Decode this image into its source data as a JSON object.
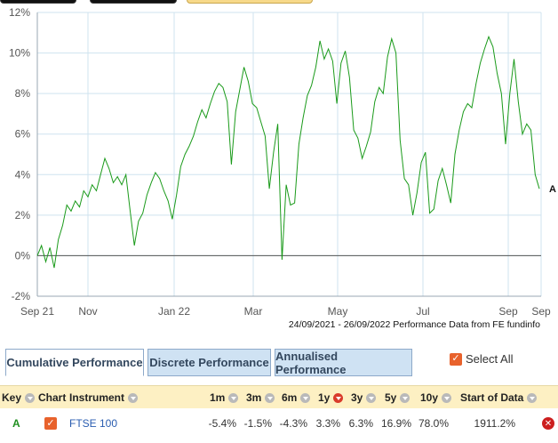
{
  "tabs": [
    {
      "label": "Cumulative Performance",
      "active": true
    },
    {
      "label": "Discrete Performance",
      "active": false
    },
    {
      "label": "Annualised Performance",
      "active": false
    }
  ],
  "select_all": {
    "label": "Select All",
    "checked": true
  },
  "table": {
    "headers": {
      "key": "Key",
      "chart": "Chart",
      "instrument": "Instrument",
      "m1": "1m",
      "m3": "3m",
      "m6": "6m",
      "y1": "1y",
      "y3": "3y",
      "y5": "5y",
      "y10": "10y",
      "start": "Start of Data"
    },
    "rows": [
      {
        "key": "A",
        "instrument": "FTSE 100",
        "m1": "-5.4%",
        "m3": "-1.5%",
        "m6": "-4.3%",
        "y1": "3.3%",
        "y3": "6.3%",
        "y5": "16.9%",
        "y10": "78.0%",
        "start": "1911.2%"
      }
    ]
  },
  "colors": {
    "series": "#1a9a1a",
    "grid": "#cfe3ef",
    "tab_inactive": "#cfe2f3",
    "header_bg": "#fdf0c3",
    "checkbox": "#e8622c",
    "remove": "#cc1f1f"
  },
  "icons": {
    "sort": "sort-arrow-icon",
    "sort_active": "sort-active-icon",
    "check": "check-icon",
    "remove": "remove-icon"
  },
  "chart_data": {
    "type": "line",
    "date_note": "24/09/2021 - 26/09/2022 Performance Data from FE fundinfo",
    "x_ticks": [
      "Sep 21",
      "Nov",
      "Jan 22",
      "Mar",
      "May",
      "Jul",
      "Sep",
      "Sep"
    ],
    "y_ticks": [
      "12%",
      "10%",
      "8%",
      "6%",
      "4%",
      "2%",
      "0%",
      "-2%"
    ],
    "ylim": [
      -2,
      12
    ],
    "grid": true,
    "series": [
      {
        "name": "A",
        "values": [
          0.0,
          0.5,
          -0.3,
          0.4,
          -0.6,
          0.8,
          1.5,
          2.5,
          2.2,
          2.7,
          2.4,
          3.2,
          2.9,
          3.5,
          3.2,
          4.0,
          4.8,
          4.3,
          3.6,
          3.9,
          3.5,
          4.0,
          2.2,
          0.5,
          1.7,
          2.1,
          3.0,
          3.6,
          4.1,
          3.8,
          3.2,
          2.7,
          1.8,
          3.0,
          4.4,
          5.0,
          5.4,
          5.9,
          6.6,
          7.2,
          6.8,
          7.5,
          8.1,
          8.5,
          8.3,
          7.6,
          4.5,
          7.1,
          8.2,
          9.3,
          8.6,
          7.5,
          7.3,
          6.6,
          5.9,
          3.3,
          5.1,
          6.5,
          -0.2,
          3.5,
          2.5,
          2.6,
          5.5,
          6.8,
          7.9,
          8.4,
          9.3,
          10.6,
          9.7,
          10.2,
          9.6,
          7.5,
          9.5,
          10.1,
          8.8,
          6.2,
          5.8,
          4.8,
          5.4,
          6.1,
          7.6,
          8.3,
          8.0,
          9.8,
          10.7,
          10.0,
          5.7,
          3.8,
          3.5,
          2.0,
          3.1,
          4.6,
          5.1,
          2.1,
          2.3,
          3.7,
          4.3,
          3.5,
          2.6,
          5.0,
          6.2,
          7.1,
          7.5,
          7.3,
          8.5,
          9.5,
          10.2,
          10.8,
          10.3,
          9.0,
          8.0,
          5.5,
          8.0,
          9.7,
          7.6,
          6.0,
          6.5,
          6.2,
          4.0,
          3.3
        ]
      }
    ],
    "end_label": "A"
  }
}
